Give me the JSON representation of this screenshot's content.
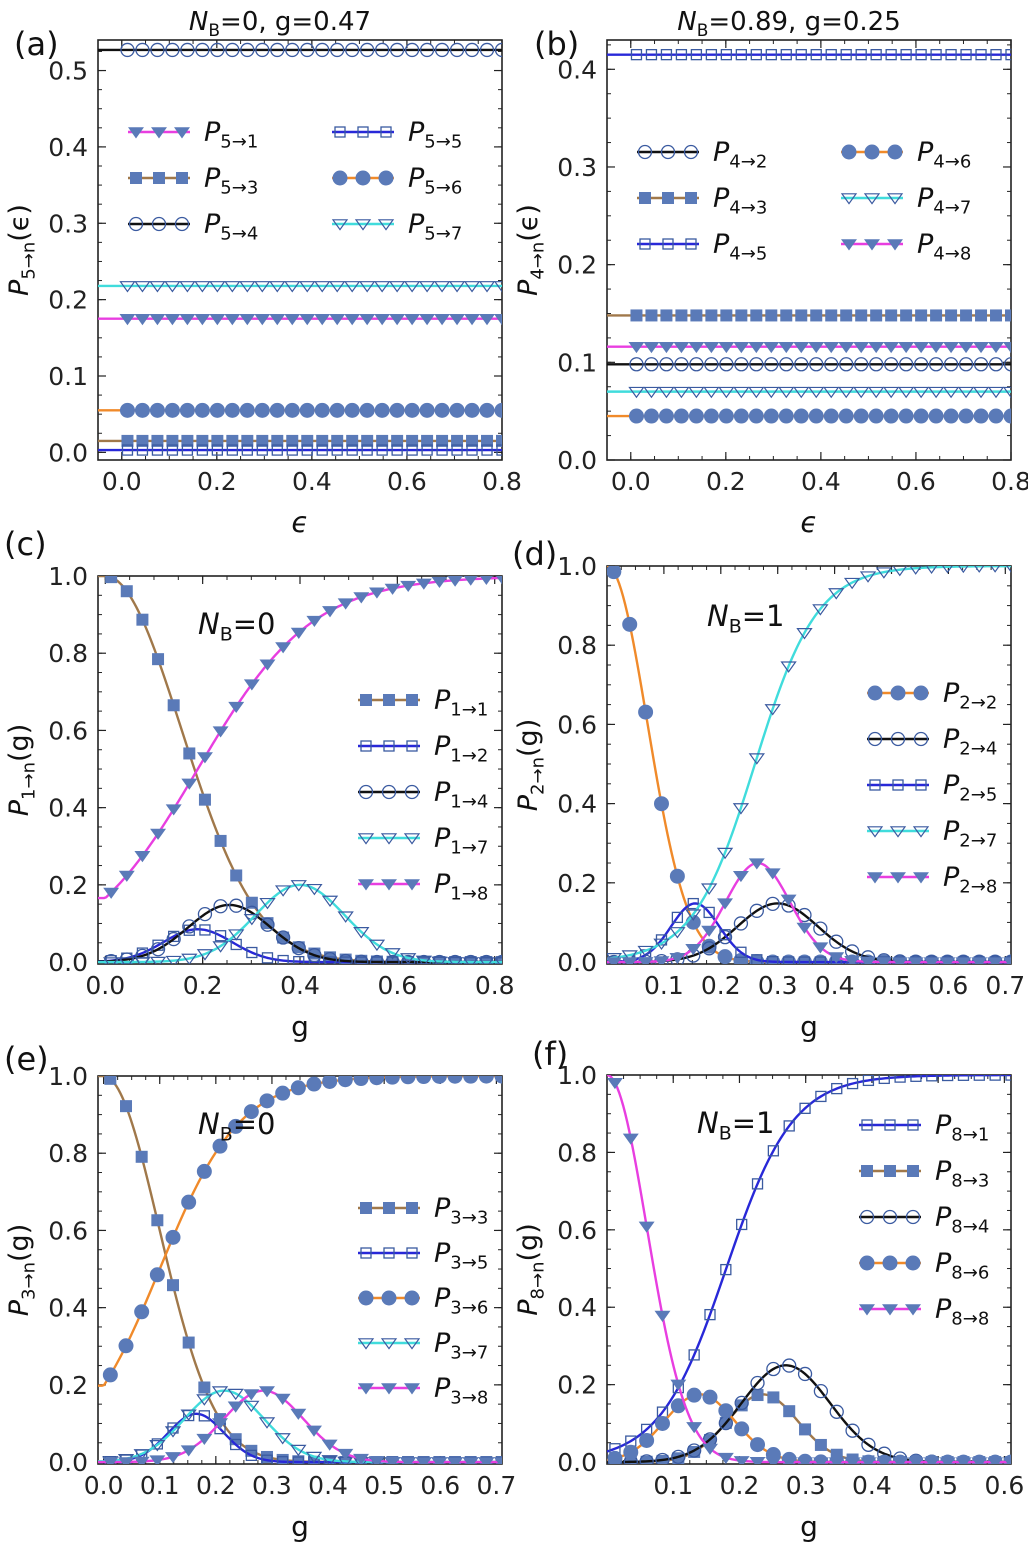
{
  "colors": {
    "magenta": "#e83ee0",
    "brown": "#a0784a",
    "black": "#111111",
    "blue": "#2828d8",
    "orange": "#f08a2a",
    "cyan": "#40dcdc",
    "marker_fill": "#5a7ab8",
    "marker_stroke": "#3a5aa0"
  },
  "chart_data": [
    {
      "id": "a",
      "panel_label": "(a)",
      "type": "line",
      "title_main": "N",
      "title_sub": "B",
      "title_rest": "=0, g=0.47",
      "inset_main": "",
      "inset_sub": "",
      "inset_rest": "",
      "xlabel": "ϵ",
      "ylabel_main": "P",
      "ylabel_sub": "5→n",
      "ylabel_rest": "(ϵ)",
      "xlim": [
        -0.05,
        0.8
      ],
      "ylim": [
        -0.01,
        0.54
      ],
      "x_ticks": [
        0.0,
        0.2,
        0.4,
        0.6,
        0.8
      ],
      "x_tick_labels": [
        "0.0",
        "0.2",
        "0.4",
        "0.6",
        "0.8"
      ],
      "y_ticks": [
        0.0,
        0.1,
        0.2,
        0.3,
        0.4,
        0.5
      ],
      "y_tick_labels": [
        "0.0",
        "0.1",
        "0.2",
        "0.3",
        "0.4",
        "0.5"
      ],
      "legend_layout": "two-columns-top",
      "series": [
        {
          "name_main": "P",
          "name_sub": "5→1",
          "color": "magenta",
          "marker": "tri-down-filled",
          "kind": "const",
          "value": 0.175
        },
        {
          "name_main": "P",
          "name_sub": "5→3",
          "color": "brown",
          "marker": "square-filled",
          "kind": "const",
          "value": 0.015
        },
        {
          "name_main": "P",
          "name_sub": "5→4",
          "color": "black",
          "marker": "circle-open",
          "kind": "const",
          "value": 0.527
        },
        {
          "name_main": "P",
          "name_sub": "5→5",
          "color": "blue",
          "marker": "square-open",
          "kind": "const",
          "value": 0.003
        },
        {
          "name_main": "P",
          "name_sub": "5→6",
          "color": "orange",
          "marker": "circle-filled",
          "kind": "const",
          "value": 0.055
        },
        {
          "name_main": "P",
          "name_sub": "5→7",
          "color": "cyan",
          "marker": "tri-down-open",
          "kind": "const",
          "value": 0.218
        }
      ]
    },
    {
      "id": "b",
      "panel_label": "(b)",
      "type": "line",
      "title_main": "N",
      "title_sub": "B",
      "title_rest": "=0.89, g=0.25",
      "inset_main": "",
      "inset_sub": "",
      "inset_rest": "",
      "xlabel": "ϵ",
      "ylabel_main": "P",
      "ylabel_sub": "4→n",
      "ylabel_rest": "(ϵ)",
      "xlim": [
        -0.05,
        0.8
      ],
      "ylim": [
        0.0,
        0.43
      ],
      "x_ticks": [
        0.0,
        0.2,
        0.4,
        0.6,
        0.8
      ],
      "x_tick_labels": [
        "0.0",
        "0.2",
        "0.4",
        "0.6",
        "0.8"
      ],
      "y_ticks": [
        0.0,
        0.1,
        0.2,
        0.3,
        0.4
      ],
      "y_tick_labels": [
        "0.0",
        "0.1",
        "0.2",
        "0.3",
        "0.4"
      ],
      "legend_layout": "two-columns-top",
      "series": [
        {
          "name_main": "P",
          "name_sub": "4→2",
          "color": "black",
          "marker": "circle-open",
          "kind": "const",
          "value": 0.098
        },
        {
          "name_main": "P",
          "name_sub": "4→3",
          "color": "brown",
          "marker": "square-filled",
          "kind": "const",
          "value": 0.148
        },
        {
          "name_main": "P",
          "name_sub": "4→5",
          "color": "blue",
          "marker": "square-open",
          "kind": "const",
          "value": 0.415
        },
        {
          "name_main": "P",
          "name_sub": "4→6",
          "color": "orange",
          "marker": "circle-filled",
          "kind": "const",
          "value": 0.045
        },
        {
          "name_main": "P",
          "name_sub": "4→7",
          "color": "cyan",
          "marker": "tri-down-open",
          "kind": "const",
          "value": 0.07
        },
        {
          "name_main": "P",
          "name_sub": "4→8",
          "color": "magenta",
          "marker": "tri-down-filled",
          "kind": "const",
          "value": 0.116
        }
      ]
    },
    {
      "id": "c",
      "panel_label": "(c)",
      "type": "line",
      "title_main": "",
      "title_sub": "",
      "title_rest": "",
      "inset_main": "N",
      "inset_sub": "B",
      "inset_rest": "=0",
      "xlabel": "g",
      "ylabel_main": "P",
      "ylabel_sub": "1→n",
      "ylabel_rest": "(g)",
      "xlim": [
        -0.015,
        0.815
      ],
      "ylim": [
        -0.005,
        1.0
      ],
      "x_ticks": [
        0.0,
        0.2,
        0.4,
        0.6,
        0.8
      ],
      "x_tick_labels": [
        "0.0",
        "0.2",
        "0.4",
        "0.6",
        "0.8"
      ],
      "y_ticks": [
        0.0,
        0.2,
        0.4,
        0.6,
        0.8,
        1.0
      ],
      "y_tick_labels": [
        "0.0",
        "0.2",
        "0.4",
        "0.6",
        "0.8",
        "1.0"
      ],
      "legend_layout": "one-column-right",
      "series": [
        {
          "name_main": "P",
          "name_sub": "1→1",
          "color": "brown",
          "marker": "square-filled",
          "kind": "decay",
          "amp": 1.0,
          "center": 0.0,
          "width": 0.22
        },
        {
          "name_main": "P",
          "name_sub": "1→2",
          "color": "blue",
          "marker": "square-open",
          "kind": "bump",
          "amp": 0.085,
          "center": 0.19,
          "width": 0.1
        },
        {
          "name_main": "P",
          "name_sub": "1→4",
          "color": "black",
          "marker": "circle-open",
          "kind": "bump",
          "amp": 0.148,
          "center": 0.255,
          "width": 0.12
        },
        {
          "name_main": "P",
          "name_sub": "1→7",
          "color": "cyan",
          "marker": "tri-down-open",
          "kind": "bump",
          "amp": 0.2,
          "center": 0.4,
          "width": 0.13
        },
        {
          "name_main": "P",
          "name_sub": "1→8",
          "color": "magenta",
          "marker": "tri-down-filled",
          "kind": "rise",
          "amp": 1.0,
          "center": 0.0,
          "width": 0.28,
          "offset": 0.19
        }
      ]
    },
    {
      "id": "d",
      "panel_label": "(d)",
      "type": "line",
      "title_main": "",
      "title_sub": "",
      "title_rest": "",
      "inset_main": "N",
      "inset_sub": "B",
      "inset_rest": "=1",
      "xlabel": "g",
      "ylabel_main": "P",
      "ylabel_sub": "2→n",
      "ylabel_rest": "(g)",
      "xlim": [
        0.0,
        0.71
      ],
      "ylim": [
        -0.005,
        1.0
      ],
      "x_ticks": [
        0.1,
        0.2,
        0.3,
        0.4,
        0.5,
        0.6,
        0.7
      ],
      "x_tick_labels": [
        "0.1",
        "0.2",
        "0.3",
        "0.4",
        "0.5",
        "0.6",
        "0.7"
      ],
      "y_ticks": [
        0.0,
        0.2,
        0.4,
        0.6,
        0.8,
        1.0
      ],
      "y_tick_labels": [
        "0.0",
        "0.2",
        "0.4",
        "0.6",
        "0.8",
        "1.0"
      ],
      "legend_layout": "one-column-right",
      "series": [
        {
          "name_main": "P",
          "name_sub": "2→2",
          "color": "orange",
          "marker": "circle-filled",
          "kind": "decay",
          "amp": 1.0,
          "center": 0.0,
          "width": 0.1
        },
        {
          "name_main": "P",
          "name_sub": "2→4",
          "color": "black",
          "marker": "circle-open",
          "kind": "bump",
          "amp": 0.148,
          "center": 0.3,
          "width": 0.1
        },
        {
          "name_main": "P",
          "name_sub": "2→5",
          "color": "blue",
          "marker": "square-open",
          "kind": "bump",
          "amp": 0.148,
          "center": 0.155,
          "width": 0.06
        },
        {
          "name_main": "P",
          "name_sub": "2→7",
          "color": "cyan",
          "marker": "tri-down-open",
          "kind": "rise",
          "amp": 1.0,
          "center": 0.0,
          "width": 0.13,
          "offset": 0.26
        },
        {
          "name_main": "P",
          "name_sub": "2→8",
          "color": "magenta",
          "marker": "tri-down-filled",
          "kind": "bump",
          "amp": 0.25,
          "center": 0.265,
          "width": 0.08
        }
      ]
    },
    {
      "id": "e",
      "panel_label": "(e)",
      "type": "line",
      "title_main": "",
      "title_sub": "",
      "title_rest": "",
      "inset_main": "N",
      "inset_sub": "B",
      "inset_rest": "=0",
      "xlabel": "g",
      "ylabel_main": "P",
      "ylabel_sub": "3→n",
      "ylabel_rest": "(g)",
      "xlim": [
        -0.01,
        0.71
      ],
      "ylim": [
        -0.005,
        1.0
      ],
      "x_ticks": [
        0.0,
        0.1,
        0.2,
        0.3,
        0.4,
        0.5,
        0.6,
        0.7
      ],
      "x_tick_labels": [
        "0.0",
        "0.1",
        "0.2",
        "0.3",
        "0.4",
        "0.5",
        "0.6",
        "0.7"
      ],
      "y_ticks": [
        0.0,
        0.2,
        0.4,
        0.6,
        0.8,
        1.0
      ],
      "y_tick_labels": [
        "0.0",
        "0.2",
        "0.4",
        "0.6",
        "0.8",
        "1.0"
      ],
      "legend_layout": "one-column-right",
      "series": [
        {
          "name_main": "P",
          "name_sub": "3→3",
          "color": "brown",
          "marker": "square-filled",
          "kind": "decay",
          "amp": 1.0,
          "center": 0.0,
          "width": 0.14
        },
        {
          "name_main": "P",
          "name_sub": "3→5",
          "color": "blue",
          "marker": "square-open",
          "kind": "bump",
          "amp": 0.125,
          "center": 0.165,
          "width": 0.07
        },
        {
          "name_main": "P",
          "name_sub": "3→6",
          "color": "orange",
          "marker": "circle-filled",
          "kind": "rise",
          "amp": 1.0,
          "center": 0.0,
          "width": 0.17,
          "offset": 0.1
        },
        {
          "name_main": "P",
          "name_sub": "3→7",
          "color": "cyan",
          "marker": "tri-down-open",
          "kind": "bump",
          "amp": 0.185,
          "center": 0.215,
          "width": 0.1
        },
        {
          "name_main": "P",
          "name_sub": "3→8",
          "color": "magenta",
          "marker": "tri-down-filled",
          "kind": "bump",
          "amp": 0.185,
          "center": 0.285,
          "width": 0.1
        }
      ]
    },
    {
      "id": "f",
      "panel_label": "(f)",
      "type": "line",
      "title_main": "",
      "title_sub": "",
      "title_rest": "",
      "inset_main": "N",
      "inset_sub": "B",
      "inset_rest": "=1",
      "xlabel": "g",
      "ylabel_main": "P",
      "ylabel_sub": "8→n",
      "ylabel_rest": "(g)",
      "xlim": [
        0.0,
        0.61
      ],
      "ylim": [
        -0.005,
        1.0
      ],
      "x_ticks": [
        0.1,
        0.2,
        0.3,
        0.4,
        0.5,
        0.6
      ],
      "x_tick_labels": [
        "0.1",
        "0.2",
        "0.3",
        "0.4",
        "0.5",
        "0.6"
      ],
      "y_ticks": [
        0.0,
        0.2,
        0.4,
        0.6,
        0.8,
        1.0
      ],
      "y_tick_labels": [
        "0.0",
        "0.2",
        "0.4",
        "0.6",
        "0.8",
        "1.0"
      ],
      "legend_layout": "one-column-right",
      "series": [
        {
          "name_main": "P",
          "name_sub": "8→1",
          "color": "blue",
          "marker": "square-open",
          "kind": "rise",
          "amp": 1.0,
          "center": 0.0,
          "width": 0.12,
          "offset": 0.18
        },
        {
          "name_main": "P",
          "name_sub": "8→3",
          "color": "brown",
          "marker": "square-filled",
          "kind": "bump",
          "amp": 0.175,
          "center": 0.235,
          "width": 0.075
        },
        {
          "name_main": "P",
          "name_sub": "8→4",
          "color": "black",
          "marker": "circle-open",
          "kind": "bump",
          "amp": 0.25,
          "center": 0.27,
          "width": 0.095
        },
        {
          "name_main": "P",
          "name_sub": "8→6",
          "color": "orange",
          "marker": "circle-filled",
          "kind": "bump",
          "amp": 0.175,
          "center": 0.14,
          "width": 0.075
        },
        {
          "name_main": "P",
          "name_sub": "8→8",
          "color": "magenta",
          "marker": "tri-down-filled",
          "kind": "decay",
          "amp": 1.0,
          "center": 0.0,
          "width": 0.085
        }
      ]
    }
  ]
}
